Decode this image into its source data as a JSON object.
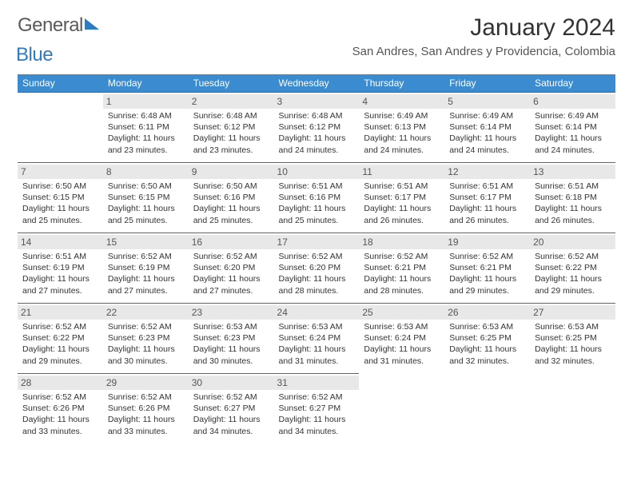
{
  "brand": {
    "part1": "General",
    "part2": "Blue"
  },
  "title": "January 2024",
  "location": "San Andres, San Andres y Providencia, Colombia",
  "colors": {
    "header_bg": "#3a8bd0",
    "header_text": "#ffffff",
    "row_border": "#3a6b9a",
    "daynum_bg": "#e8e8e8",
    "brand_blue": "#2f7bbf",
    "text": "#333333"
  },
  "dayHeaders": [
    "Sunday",
    "Monday",
    "Tuesday",
    "Wednesday",
    "Thursday",
    "Friday",
    "Saturday"
  ],
  "weeks": [
    [
      {
        "empty": true
      },
      {
        "num": "1",
        "sunrise": "6:48 AM",
        "sunset": "6:11 PM",
        "daylight": "11 hours and 23 minutes."
      },
      {
        "num": "2",
        "sunrise": "6:48 AM",
        "sunset": "6:12 PM",
        "daylight": "11 hours and 23 minutes."
      },
      {
        "num": "3",
        "sunrise": "6:48 AM",
        "sunset": "6:12 PM",
        "daylight": "11 hours and 24 minutes."
      },
      {
        "num": "4",
        "sunrise": "6:49 AM",
        "sunset": "6:13 PM",
        "daylight": "11 hours and 24 minutes."
      },
      {
        "num": "5",
        "sunrise": "6:49 AM",
        "sunset": "6:14 PM",
        "daylight": "11 hours and 24 minutes."
      },
      {
        "num": "6",
        "sunrise": "6:49 AM",
        "sunset": "6:14 PM",
        "daylight": "11 hours and 24 minutes."
      }
    ],
    [
      {
        "num": "7",
        "sunrise": "6:50 AM",
        "sunset": "6:15 PM",
        "daylight": "11 hours and 25 minutes."
      },
      {
        "num": "8",
        "sunrise": "6:50 AM",
        "sunset": "6:15 PM",
        "daylight": "11 hours and 25 minutes."
      },
      {
        "num": "9",
        "sunrise": "6:50 AM",
        "sunset": "6:16 PM",
        "daylight": "11 hours and 25 minutes."
      },
      {
        "num": "10",
        "sunrise": "6:51 AM",
        "sunset": "6:16 PM",
        "daylight": "11 hours and 25 minutes."
      },
      {
        "num": "11",
        "sunrise": "6:51 AM",
        "sunset": "6:17 PM",
        "daylight": "11 hours and 26 minutes."
      },
      {
        "num": "12",
        "sunrise": "6:51 AM",
        "sunset": "6:17 PM",
        "daylight": "11 hours and 26 minutes."
      },
      {
        "num": "13",
        "sunrise": "6:51 AM",
        "sunset": "6:18 PM",
        "daylight": "11 hours and 26 minutes."
      }
    ],
    [
      {
        "num": "14",
        "sunrise": "6:51 AM",
        "sunset": "6:19 PM",
        "daylight": "11 hours and 27 minutes."
      },
      {
        "num": "15",
        "sunrise": "6:52 AM",
        "sunset": "6:19 PM",
        "daylight": "11 hours and 27 minutes."
      },
      {
        "num": "16",
        "sunrise": "6:52 AM",
        "sunset": "6:20 PM",
        "daylight": "11 hours and 27 minutes."
      },
      {
        "num": "17",
        "sunrise": "6:52 AM",
        "sunset": "6:20 PM",
        "daylight": "11 hours and 28 minutes."
      },
      {
        "num": "18",
        "sunrise": "6:52 AM",
        "sunset": "6:21 PM",
        "daylight": "11 hours and 28 minutes."
      },
      {
        "num": "19",
        "sunrise": "6:52 AM",
        "sunset": "6:21 PM",
        "daylight": "11 hours and 29 minutes."
      },
      {
        "num": "20",
        "sunrise": "6:52 AM",
        "sunset": "6:22 PM",
        "daylight": "11 hours and 29 minutes."
      }
    ],
    [
      {
        "num": "21",
        "sunrise": "6:52 AM",
        "sunset": "6:22 PM",
        "daylight": "11 hours and 29 minutes."
      },
      {
        "num": "22",
        "sunrise": "6:52 AM",
        "sunset": "6:23 PM",
        "daylight": "11 hours and 30 minutes."
      },
      {
        "num": "23",
        "sunrise": "6:53 AM",
        "sunset": "6:23 PM",
        "daylight": "11 hours and 30 minutes."
      },
      {
        "num": "24",
        "sunrise": "6:53 AM",
        "sunset": "6:24 PM",
        "daylight": "11 hours and 31 minutes."
      },
      {
        "num": "25",
        "sunrise": "6:53 AM",
        "sunset": "6:24 PM",
        "daylight": "11 hours and 31 minutes."
      },
      {
        "num": "26",
        "sunrise": "6:53 AM",
        "sunset": "6:25 PM",
        "daylight": "11 hours and 32 minutes."
      },
      {
        "num": "27",
        "sunrise": "6:53 AM",
        "sunset": "6:25 PM",
        "daylight": "11 hours and 32 minutes."
      }
    ],
    [
      {
        "num": "28",
        "sunrise": "6:52 AM",
        "sunset": "6:26 PM",
        "daylight": "11 hours and 33 minutes."
      },
      {
        "num": "29",
        "sunrise": "6:52 AM",
        "sunset": "6:26 PM",
        "daylight": "11 hours and 33 minutes."
      },
      {
        "num": "30",
        "sunrise": "6:52 AM",
        "sunset": "6:27 PM",
        "daylight": "11 hours and 34 minutes."
      },
      {
        "num": "31",
        "sunrise": "6:52 AM",
        "sunset": "6:27 PM",
        "daylight": "11 hours and 34 minutes."
      },
      {
        "empty": true
      },
      {
        "empty": true
      },
      {
        "empty": true
      }
    ]
  ]
}
